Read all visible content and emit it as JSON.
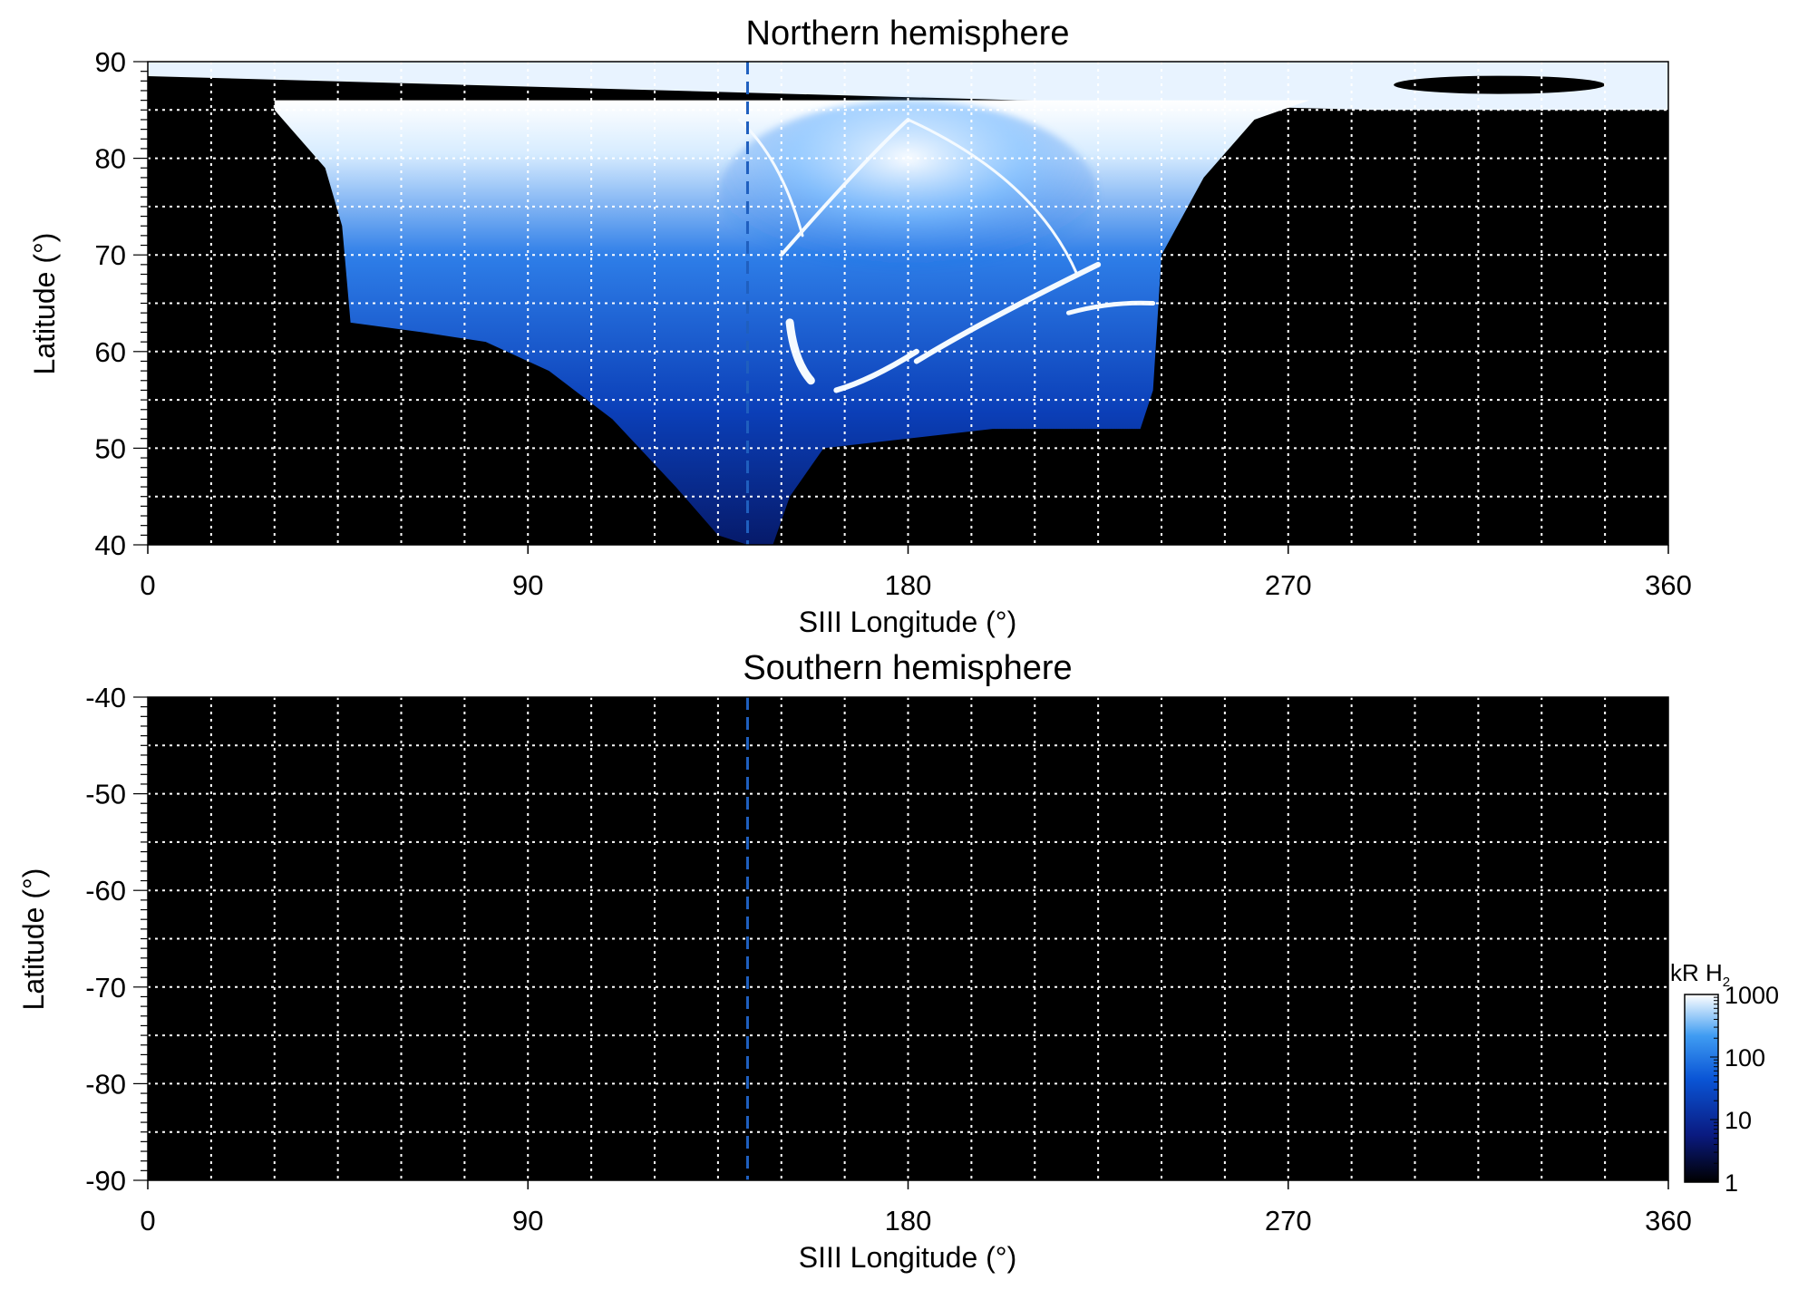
{
  "chart_data": [
    {
      "type": "heatmap",
      "title": "Northern hemisphere",
      "xlabel": "SIII Longitude (°)",
      "ylabel": "Latitude (°)",
      "xlim": [
        0,
        360
      ],
      "ylim": [
        40,
        90
      ],
      "xticks": [
        "0",
        "90",
        "180",
        "270",
        "360"
      ],
      "xtick_values": [
        0,
        90,
        180,
        270,
        360
      ],
      "yticks": [
        "40",
        "50",
        "60",
        "70",
        "80",
        "90"
      ],
      "ytick_values": [
        40,
        50,
        60,
        70,
        80,
        90
      ],
      "grid": true,
      "grid_x_step": 15,
      "grid_y_step": 5,
      "reference_line": {
        "x": 142,
        "style": "dashed",
        "color": "#1f5fbf"
      },
      "emission_region": {
        "polar_cap_min_lat_west": 86,
        "polar_cap_min_lat_east": 85,
        "boundary_lower": [
          [
            30,
            85
          ],
          [
            42,
            79
          ],
          [
            46,
            73
          ],
          [
            48,
            63
          ],
          [
            65,
            62
          ],
          [
            80,
            61
          ],
          [
            95,
            58
          ],
          [
            110,
            53
          ],
          [
            125,
            46
          ],
          [
            135,
            41
          ],
          [
            142,
            40
          ],
          [
            148,
            40
          ],
          [
            152,
            45
          ],
          [
            160,
            50
          ],
          [
            200,
            52
          ],
          [
            235,
            52
          ],
          [
            238,
            56
          ],
          [
            240,
            70
          ],
          [
            250,
            78
          ],
          [
            262,
            84
          ],
          [
            275,
            86
          ]
        ],
        "bright_features": [
          {
            "lon": [
              152,
              157
            ],
            "lat": [
              57,
              63
            ]
          },
          {
            "lon": [
              163,
              182
            ],
            "lat": [
              56,
              60
            ]
          },
          {
            "lon": [
              182,
              225
            ],
            "lat": [
              57,
              69
            ]
          },
          {
            "lon": [
              218,
              238
            ],
            "lat": [
              64,
              65
            ]
          },
          {
            "lon": [
              150,
              240
            ],
            "lat": [
              65,
              84
            ]
          }
        ]
      }
    },
    {
      "type": "heatmap",
      "title": "Southern hemisphere",
      "xlabel": "SIII Longitude (°)",
      "ylabel": "Latitude (°)",
      "xlim": [
        0,
        360
      ],
      "ylim": [
        -90,
        -40
      ],
      "xticks": [
        "0",
        "90",
        "180",
        "270",
        "360"
      ],
      "xtick_values": [
        0,
        90,
        180,
        270,
        360
      ],
      "yticks": [
        "-40",
        "-50",
        "-60",
        "-70",
        "-80",
        "-90"
      ],
      "ytick_values": [
        -40,
        -50,
        -60,
        -70,
        -80,
        -90
      ],
      "grid": true,
      "grid_x_step": 15,
      "grid_y_step": 5,
      "reference_line": {
        "x": 142,
        "style": "dashed",
        "color": "#1f5fbf"
      },
      "emission_region": null
    }
  ],
  "colorbar": {
    "label": "kR H",
    "label_sub": "2",
    "scale": "log",
    "range": [
      1,
      1000
    ],
    "ticks": [
      "1000",
      "100",
      "10",
      "1"
    ],
    "tick_values": [
      1000,
      100,
      10,
      1
    ],
    "colors": [
      "#000000",
      "#0a1a80",
      "#0a55d6",
      "#3f9cf2",
      "#ffffff"
    ]
  }
}
